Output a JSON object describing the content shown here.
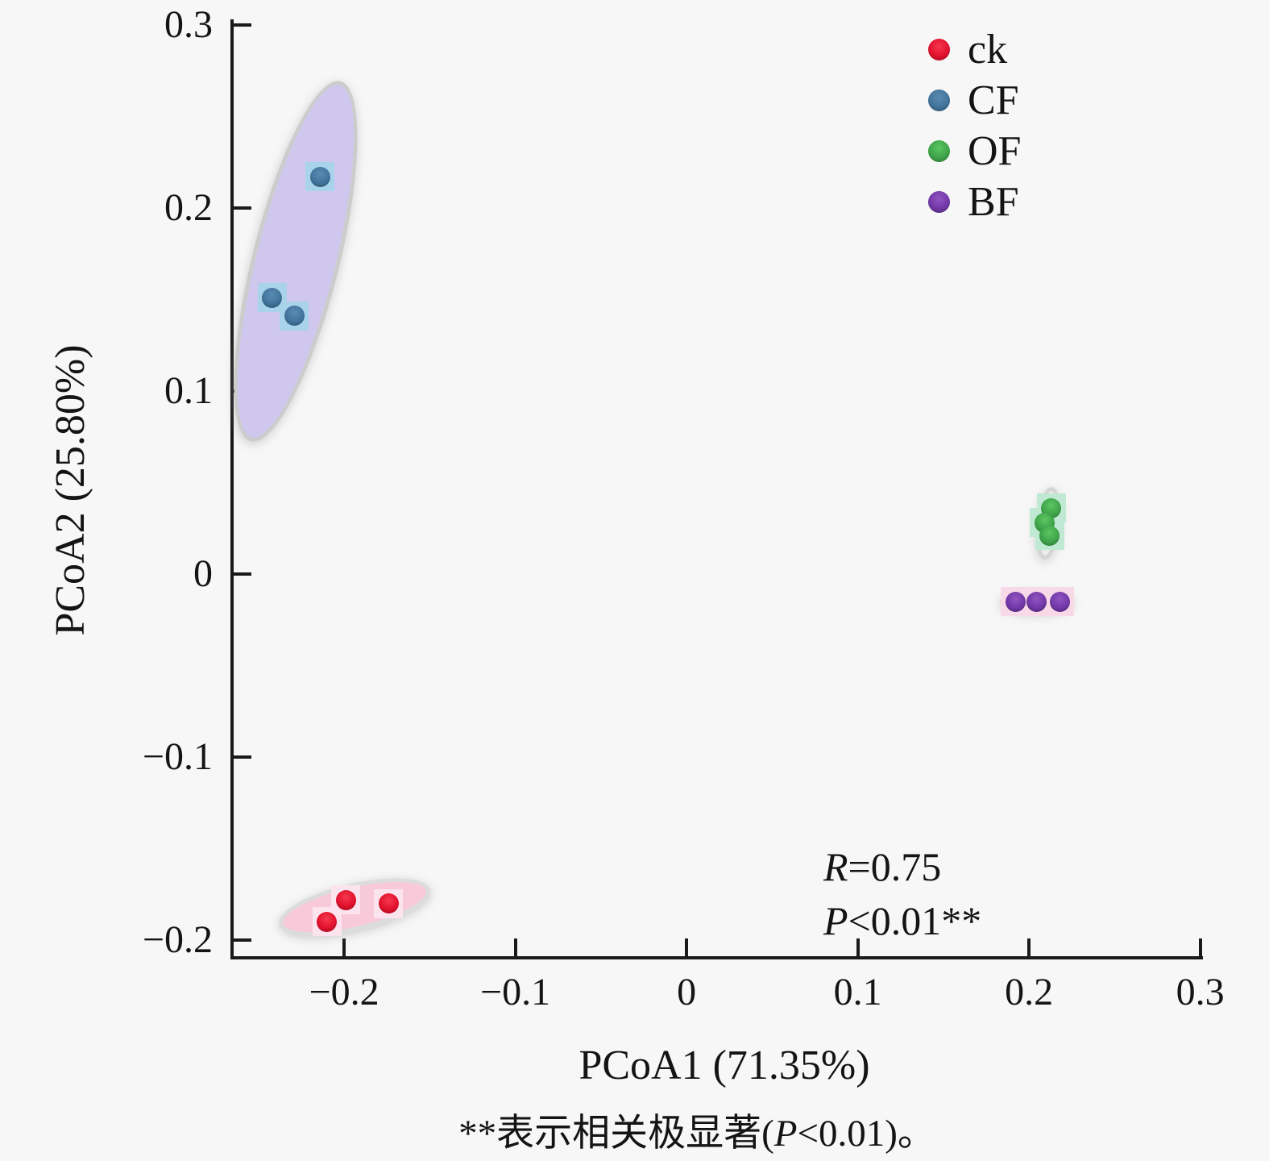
{
  "figure": {
    "background": "#f7f7f7",
    "axis_color": "#1a1a1a",
    "text_color": "#141414"
  },
  "chart_data": {
    "type": "scatter",
    "title": "",
    "xlabel": "PCoA1 (71.35%)",
    "ylabel": "PCoA2 (25.80%)",
    "xlim": [
      -0.2645,
      0.3016
    ],
    "ylim": [
      -0.2088,
      0.3031
    ],
    "xticks": [
      -0.2,
      -0.1,
      0,
      0.1,
      0.2,
      0.3
    ],
    "yticks": [
      0.3,
      0.2,
      0.1,
      0,
      -0.1,
      -0.2
    ],
    "grid": false,
    "legend_position": "top-right-inside",
    "series": [
      {
        "name": "ck",
        "marker_color": "#e2112d",
        "marker_light": "#f4394d",
        "marker_dark": "#8f0a1a",
        "halo_color": "#fce4ee",
        "points": [
          [
            -0.21,
            -0.19
          ],
          [
            -0.199,
            -0.178
          ],
          [
            -0.174,
            -0.18
          ]
        ],
        "ellipse": {
          "cx": -0.194,
          "cy": -0.182,
          "rx": 0.0452,
          "ry": 0.0128,
          "angle_deg": -13,
          "fill": "#f8c9d9",
          "stroke": "#dcdcdc"
        }
      },
      {
        "name": "CF",
        "marker_color": "#41749c",
        "marker_light": "#5b8cb3",
        "marker_dark": "#27475f",
        "halo_color": "#a9d3ea",
        "points": [
          [
            -0.242,
            0.151
          ],
          [
            -0.229,
            0.141
          ],
          [
            -0.214,
            0.217
          ]
        ],
        "ellipse": {
          "cx": -0.2282,
          "cy": 0.1709,
          "rx": 0.0254,
          "ry": 0.1013,
          "angle_deg": 14,
          "fill": "#cfc7ee",
          "stroke": "#cccccc"
        }
      },
      {
        "name": "OF",
        "marker_color": "#3fa44a",
        "marker_light": "#5cc763",
        "marker_dark": "#27682e",
        "halo_color": "#bfe9d2",
        "points": [
          [
            0.213,
            0.036
          ],
          [
            0.209,
            0.028
          ],
          [
            0.212,
            0.021
          ]
        ],
        "ellipse": {
          "cx": 0.2113,
          "cy": 0.028,
          "rx": 0.0071,
          "ry": 0.0198,
          "angle_deg": 6,
          "fill": "#ebedeb",
          "stroke": "#d4d4d4"
        }
      },
      {
        "name": "BF",
        "marker_color": "#7238a8",
        "marker_light": "#9256c0",
        "marker_dark": "#43215f",
        "halo_color": "#f7d9e8",
        "points": [
          [
            0.192,
            -0.015
          ],
          [
            0.2045,
            -0.015
          ],
          [
            0.218,
            -0.015
          ]
        ],
        "ellipse": {
          "cx": 0.2045,
          "cy": -0.015,
          "rx": 0.0216,
          "ry": 0.0062,
          "angle_deg": 0,
          "fill": "#f6dbe7",
          "stroke": "#eccfdd"
        }
      }
    ],
    "stats_annotation": {
      "r_italic": "R",
      "r_text": "=0.75",
      "p_italic": "P",
      "p_text": "<0.01**"
    },
    "caption": {
      "prefix": "**表示相关极显著(",
      "italic": "P",
      "suffix": "<0.01)。"
    }
  }
}
